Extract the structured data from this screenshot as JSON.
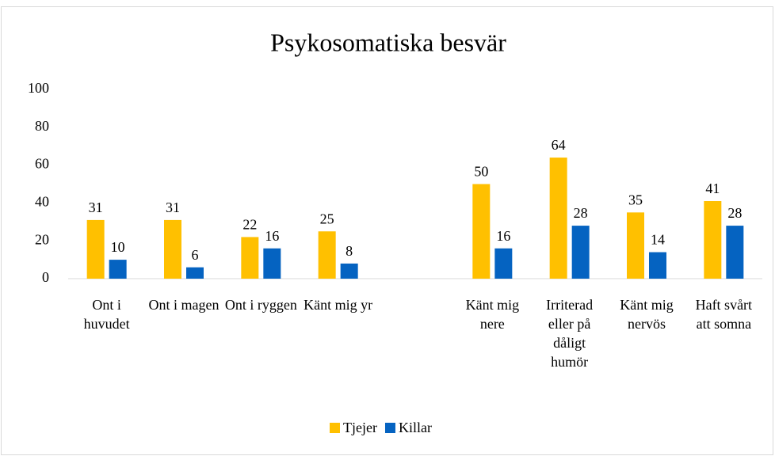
{
  "chart_data": {
    "type": "bar",
    "title": "Psykosomatiska besvär",
    "categories": [
      "Ont i huvudet",
      "Ont i magen",
      "Ont i ryggen",
      "Känt mig yr",
      null,
      "Känt mig nere",
      "Irriterad eller på dåligt humör",
      "Känt mig nervös",
      "Haft svårt att somna"
    ],
    "series": [
      {
        "name": "Tjejer",
        "color": "#ffc000",
        "values": [
          31,
          31,
          22,
          25,
          null,
          50,
          64,
          35,
          41
        ]
      },
      {
        "name": "Killar",
        "color": "#0563c1",
        "values": [
          10,
          6,
          16,
          8,
          null,
          16,
          28,
          14,
          28
        ]
      }
    ],
    "ylim": [
      0,
      100
    ],
    "yticks": [
      0,
      20,
      40,
      60,
      80,
      100
    ],
    "grid": false,
    "legend": "bottom"
  }
}
